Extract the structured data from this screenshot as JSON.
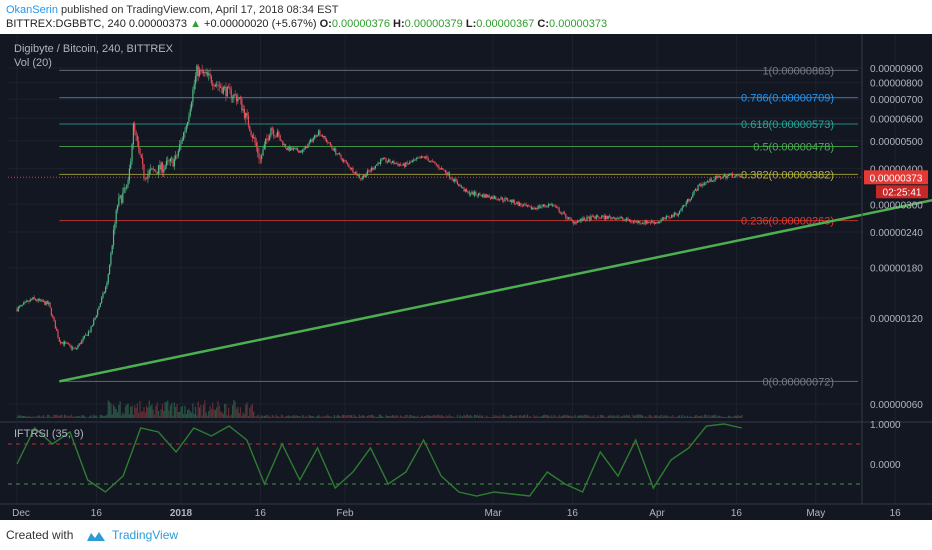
{
  "header": {
    "author": "OkanSerin",
    "published_text": "published on TradingView.com, April 17, 2018 08:34 EST",
    "symbol": "BITTREX:DGBBTC, 240",
    "last": "0.00000373",
    "arrow": "▲",
    "change": "+0.00000020 (+5.67%)",
    "o_label": "O:",
    "o": "0.00000376",
    "h_label": "H:",
    "h": "0.00000379",
    "l_label": "L:",
    "l": "0.00000367",
    "c_label": "C:",
    "c": "0.00000373"
  },
  "chart": {
    "title": "Digibyte / Bitcoin, 240, BITTREX",
    "vol_label": "Vol (20)",
    "indicator_label": "IFTRSI (35, 9)",
    "price_badge": "0.00000373",
    "countdown_badge": "02:25:41"
  },
  "footer": {
    "created_with": "Created with",
    "brand": "TradingView"
  },
  "colors": {
    "background": "#131722",
    "candle_up": "#53b987",
    "candle_down": "#eb4d5c",
    "trendline": "#4caf50",
    "indicator": "#2e7d32",
    "price_badge": "#e53935",
    "countdown_badge": "#c62828",
    "brand": "#2d9bd6"
  },
  "chart_data": [
    {
      "type": "line",
      "title": "Digibyte / Bitcoin, 240, BITTREX",
      "x_tick_labels": [
        "Dec",
        "16",
        "2018",
        "16",
        "Feb",
        "Mar",
        "16",
        "Apr",
        "16",
        "May",
        "16"
      ],
      "y_tick_labels": [
        "0.00000900",
        "0.00000800",
        "0.00000700",
        "0.00000600",
        "0.00000500",
        "0.00000400",
        "0.00000300",
        "0.00000240",
        "0.00000180",
        "0.00000120",
        "0.00000060"
      ],
      "y_scale": "log",
      "price_path": [
        [
          "Dec 01",
          1.29e-06
        ],
        [
          "Dec 04",
          1.4e-06
        ],
        [
          "Dec 07",
          1.34e-06
        ],
        [
          "Dec 09",
          1e-06
        ],
        [
          "Dec 12",
          9.3e-07
        ],
        [
          "Dec 15",
          1.1e-06
        ],
        [
          "Dec 18",
          1.58e-06
        ],
        [
          "Dec 20",
          3e-06
        ],
        [
          "Dec 22",
          3.5e-06
        ],
        [
          "Dec 23",
          5.6e-06
        ],
        [
          "Dec 25",
          3.8e-06
        ],
        [
          "Dec 28",
          4e-06
        ],
        [
          "Dec 31",
          4.3e-06
        ],
        [
          "Jan 02",
          5.7e-06
        ],
        [
          "Jan 04",
          8.8e-06
        ],
        [
          "Jan 06",
          8.4e-06
        ],
        [
          "Jan 09",
          7.6e-06
        ],
        [
          "Jan 12",
          7e-06
        ],
        [
          "Jan 14",
          5.6e-06
        ],
        [
          "Jan 16",
          4.3e-06
        ],
        [
          "Jan 18",
          5.6e-06
        ],
        [
          "Jan 21",
          4.7e-06
        ],
        [
          "Jan 24",
          4.6e-06
        ],
        [
          "Jan 27",
          5.4e-06
        ],
        [
          "Jan 31",
          4.4e-06
        ],
        [
          "Feb 04",
          3.7e-06
        ],
        [
          "Feb 08",
          4.3e-06
        ],
        [
          "Feb 12",
          4.1e-06
        ],
        [
          "Feb 16",
          4.4e-06
        ],
        [
          "Feb 20",
          3.9e-06
        ],
        [
          "Feb 24",
          3.3e-06
        ],
        [
          "Feb 28",
          3.2e-06
        ],
        [
          "Mar 04",
          3.1e-06
        ],
        [
          "Mar 08",
          2.9e-06
        ],
        [
          "Mar 12",
          3e-06
        ],
        [
          "Mar 16",
          2.6e-06
        ],
        [
          "Mar 20",
          2.7e-06
        ],
        [
          "Mar 24",
          2.7e-06
        ],
        [
          "Mar 28",
          2.6e-06
        ],
        [
          "Apr 01",
          2.6e-06
        ],
        [
          "Apr 05",
          2.8e-06
        ],
        [
          "Apr 09",
          3.5e-06
        ],
        [
          "Apr 12",
          3.7e-06
        ],
        [
          "Apr 15",
          3.8e-06
        ],
        [
          "Apr 17",
          3.73e-06
        ]
      ],
      "fibonacci_levels": [
        {
          "label": "1(0.00000883)",
          "value": 8.83e-06,
          "color": "#787b86"
        },
        {
          "label": "0.786(0.00000709)",
          "value": 7.09e-06,
          "color": "#2196f3"
        },
        {
          "label": "0.618(0.00000573)",
          "value": 5.73e-06,
          "color": "#26a69a"
        },
        {
          "label": "0.5(0.00000478)",
          "value": 4.78e-06,
          "color": "#4caf50"
        },
        {
          "label": "0.382(0.00000382)",
          "value": 3.82e-06,
          "color": "#b2b53b"
        },
        {
          "label": "0.236(0.00000263)",
          "value": 2.63e-06,
          "color": "#e53935"
        },
        {
          "label": "0(0.00000072)",
          "value": 7.2e-07,
          "color": "#787b86"
        }
      ],
      "trendline": {
        "from": [
          "Dec 09",
          7.2e-07
        ],
        "to": [
          "May 23",
          3.1e-06
        ]
      },
      "last_price": 3.73e-06
    },
    {
      "type": "line",
      "title": "IFTRSI (35, 9)",
      "y_tick_labels": [
        "1.0000",
        "0.0000"
      ],
      "levels": [
        0.5,
        -0.5
      ],
      "series": [
        {
          "values": [
            0.0,
            0.9,
            0.5,
            0.8,
            -0.4,
            -0.7,
            -0.3,
            0.9,
            0.8,
            0.3,
            0.9,
            0.7,
            0.95,
            0.6,
            -0.5,
            0.5,
            -0.4,
            0.4,
            -0.6,
            -0.2,
            0.4,
            -0.5,
            -0.2,
            0.6,
            -0.3,
            -0.7,
            -0.8,
            -0.7,
            -0.75,
            -0.8,
            -0.2,
            -0.5,
            -0.7,
            0.3,
            -0.3,
            0.6,
            -0.6,
            0.1,
            0.4,
            0.95,
            1.0,
            0.9
          ]
        }
      ]
    }
  ]
}
